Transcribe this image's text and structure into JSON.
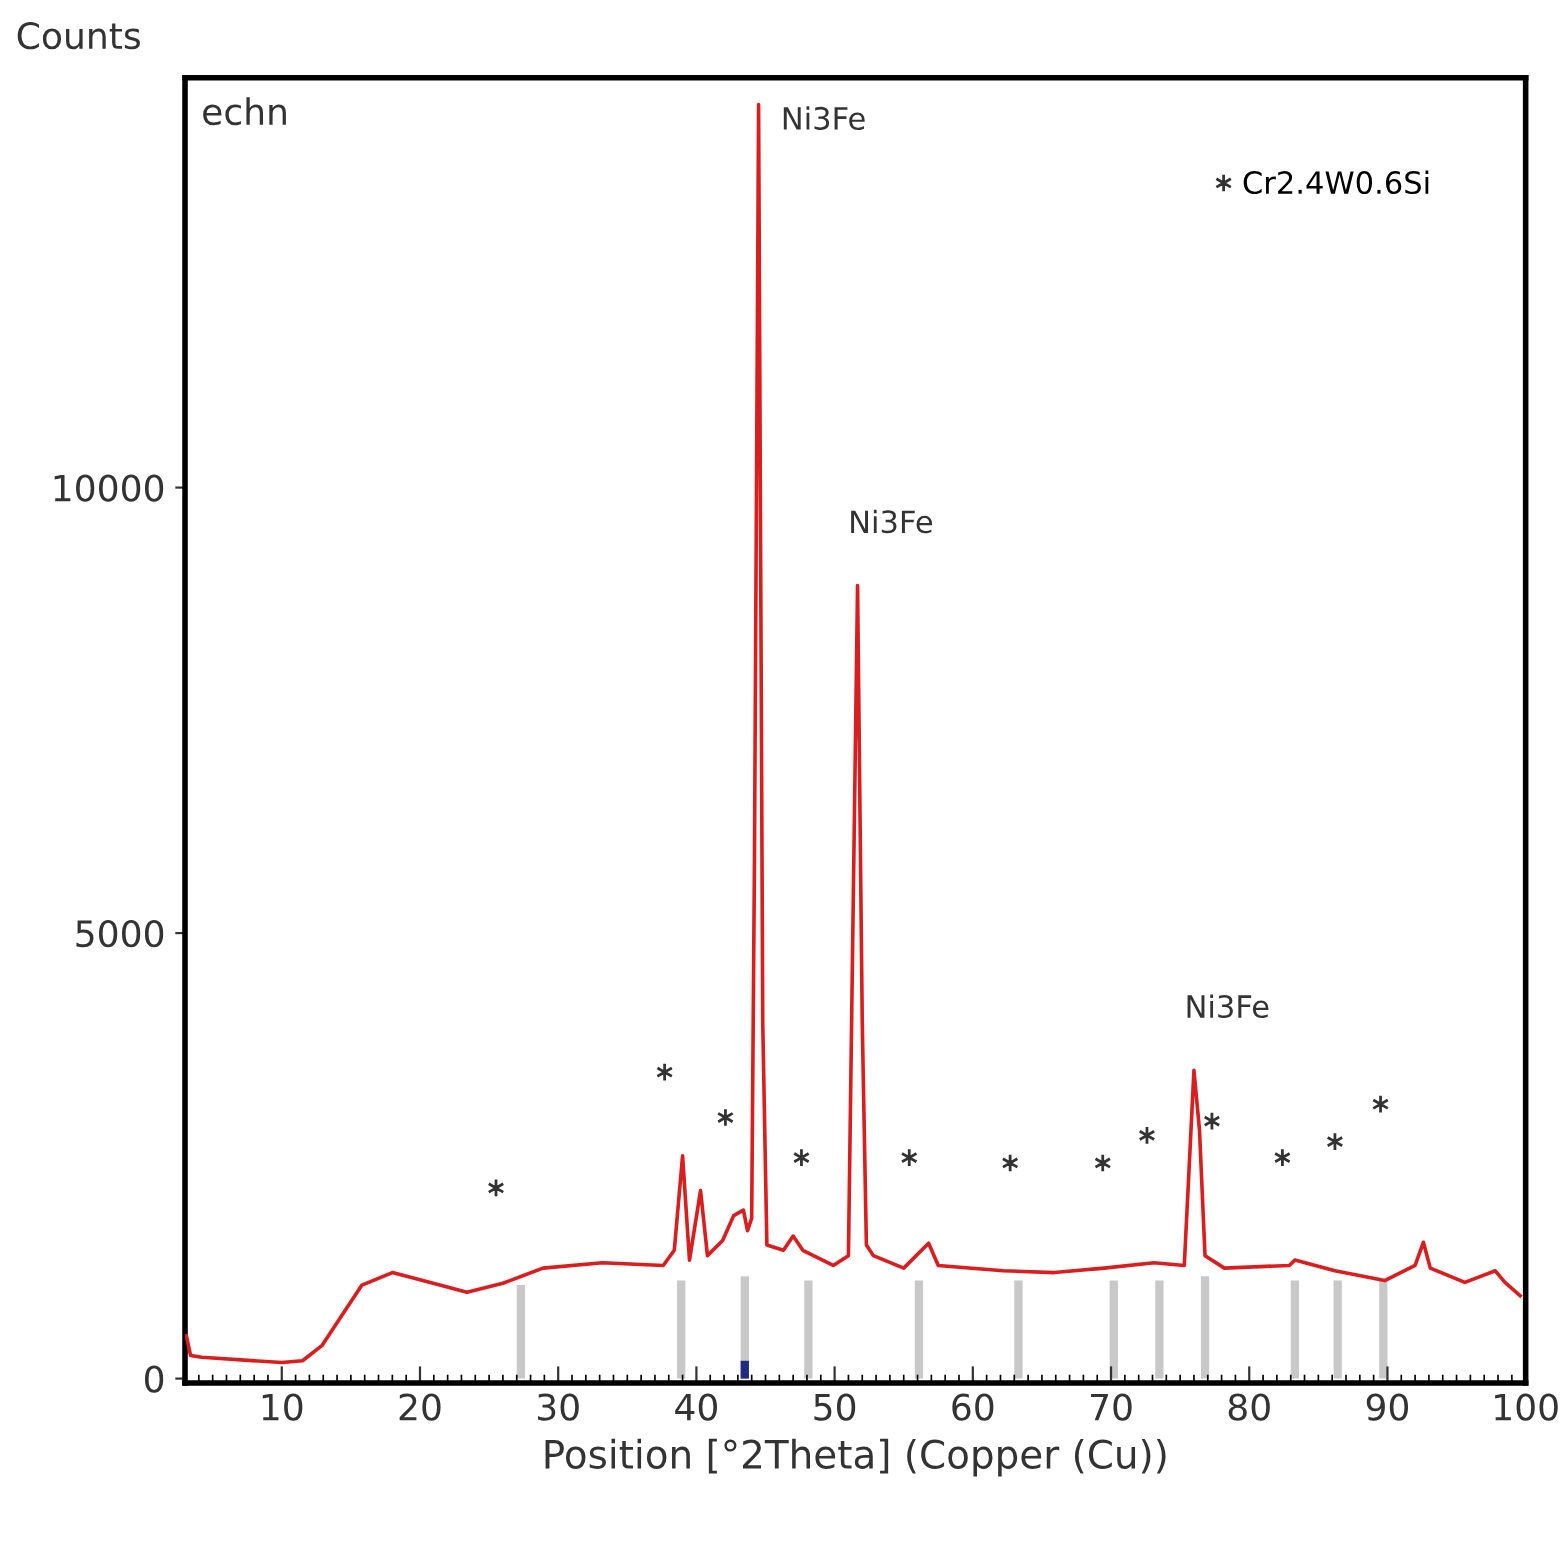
{
  "chart_data": {
    "type": "line",
    "ylabel": "Counts",
    "xlabel": "Position [°2Theta] (Copper (Cu))",
    "xlim": [
      3,
      100
    ],
    "ylim": [
      -50,
      14600
    ],
    "xticks": [
      10,
      20,
      30,
      40,
      50,
      60,
      70,
      80,
      90,
      100
    ],
    "yticks": [
      0,
      5000,
      10000
    ],
    "grid": false,
    "legend": "top right",
    "marker": "none",
    "line_style": "solid",
    "series": [
      {
        "type": "bar",
        "color": "#c8c8c8",
        "x": [
          27.3,
          38.9,
          43.5,
          48.1,
          56.1,
          63.3,
          70.2,
          73.5,
          76.8,
          83.3,
          86.4,
          89.7
        ],
        "values": [
          1050,
          1100,
          1150,
          1100,
          1100,
          1100,
          1100,
          1100,
          1150,
          1100,
          1100,
          1100
        ]
      },
      {
        "type": "bar",
        "color": "#1f2a80",
        "x": [
          43.5
        ],
        "values": [
          200
        ]
      },
      {
        "color": "#d81e1e",
        "x": [
          3.1,
          3.4,
          4.2,
          10,
          11.5,
          12.9,
          15.8,
          18,
          20.2,
          23.4,
          26,
          28.9,
          33.2,
          37.6,
          38.4,
          39.0,
          39.5,
          40.3,
          40.8,
          41.9,
          42.7,
          43.4,
          43.7,
          44.0,
          44.2,
          44.5,
          44.8,
          45.1,
          46.3,
          47.0,
          47.7,
          49.9,
          51.0,
          51.66,
          52.0,
          52.3,
          52.8,
          55.0,
          56.8,
          57.5,
          62.2,
          65.9,
          69.5,
          73.1,
          75.3,
          76.0,
          76.4,
          76.8,
          78.2,
          82.9,
          83.3,
          86.2,
          89.8,
          92.0,
          92.6,
          93.1,
          95.6,
          97.8,
          98.5,
          99.6
        ],
        "values": [
          480,
          260,
          240,
          180,
          200,
          370,
          1050,
          1190,
          1100,
          970,
          1070,
          1240,
          1300,
          1270,
          1440,
          2500,
          1330,
          2110,
          1380,
          1550,
          1830,
          1890,
          1660,
          1800,
          5800,
          14300,
          4000,
          1500,
          1440,
          1600,
          1440,
          1270,
          1380,
          8900,
          4000,
          1500,
          1380,
          1240,
          1520,
          1270,
          1210,
          1190,
          1240,
          1300,
          1270,
          3460,
          2790,
          1380,
          1240,
          1270,
          1330,
          1210,
          1100,
          1270,
          1530,
          1240,
          1080,
          1210,
          1080,
          930
        ]
      },
      {
        "type": "scatter",
        "name": "Cr2.4W0.6Si",
        "marker": "cross",
        "color": "#333333",
        "x": [
          25.5,
          37.7,
          42.1,
          47.6,
          55.4,
          62.7,
          69.4,
          72.6,
          77.3,
          82.4,
          86.2,
          89.5
        ],
        "values": [
          2140,
          3440,
          2930,
          2480,
          2480,
          2420,
          2420,
          2730,
          2890,
          2480,
          2660,
          3080
        ]
      }
    ],
    "annotations": [
      "echn",
      {
        "text": "Ni3Fe",
        "x": 44.5,
        "y": 14300
      },
      {
        "text": "Ni3Fe",
        "x": 51.66,
        "y": 8900
      },
      {
        "text": "Ni3Fe",
        "x": 76.0,
        "y": 3460
      }
    ]
  }
}
